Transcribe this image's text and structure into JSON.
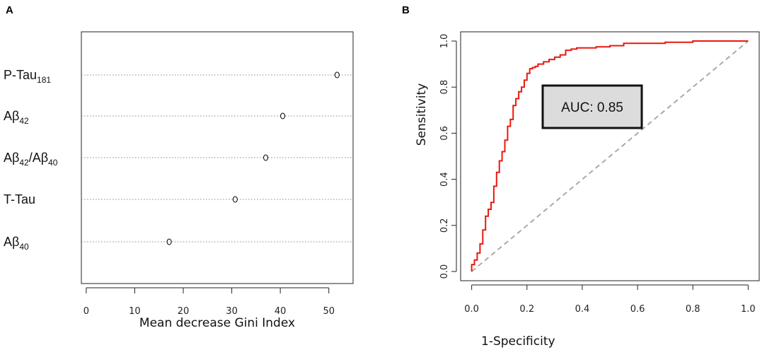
{
  "figure": {
    "panel_a": "A",
    "panel_b": "B"
  },
  "chart_data": [
    {
      "type": "scatter",
      "title": "",
      "xlabel": "Mean decrease Gini Index",
      "ylabel": "",
      "xlim": [
        -1,
        55
      ],
      "xticks": [
        "0",
        "10",
        "20",
        "30",
        "40",
        "50"
      ],
      "grid": "horizontal dotted",
      "points": [
        {
          "label": "P-Tau",
          "sub": "181",
          "label2": "",
          "sub2": "",
          "value": 51.7
        },
        {
          "label": "Aβ",
          "sub": "42",
          "label2": "",
          "sub2": "",
          "value": 40.5
        },
        {
          "label": "Aβ",
          "sub": "42",
          "label2": "/Aβ",
          "sub2": "40",
          "value": 37.0
        },
        {
          "label": "T-Tau",
          "sub": "",
          "label2": "",
          "sub2": "",
          "value": 30.7
        },
        {
          "label": "Aβ",
          "sub": "40",
          "label2": "",
          "sub2": "",
          "value": 17.1
        }
      ]
    },
    {
      "type": "line",
      "title": "",
      "xlabel": "1-Specificity",
      "ylabel": "Sensitivity",
      "xlim": [
        -0.04,
        1.04
      ],
      "ylim": [
        -0.04,
        1.04
      ],
      "xticks": [
        "0.0",
        "0.2",
        "0.4",
        "0.6",
        "0.8",
        "1.0"
      ],
      "yticks": [
        "0.0",
        "0.2",
        "0.4",
        "0.6",
        "0.8",
        "1.0"
      ],
      "annotation": "AUC: 0.85",
      "series": [
        {
          "name": "ROC",
          "color": "#e8190f",
          "x": [
            0.0,
            0.01,
            0.02,
            0.03,
            0.04,
            0.05,
            0.06,
            0.07,
            0.08,
            0.09,
            0.1,
            0.11,
            0.12,
            0.13,
            0.14,
            0.15,
            0.16,
            0.17,
            0.18,
            0.19,
            0.2,
            0.21,
            0.22,
            0.23,
            0.24,
            0.26,
            0.28,
            0.3,
            0.32,
            0.34,
            0.36,
            0.38,
            0.4,
            0.45,
            0.5,
            0.55,
            0.58,
            0.6,
            0.7,
            0.8,
            0.9,
            1.0
          ],
          "y": [
            0.0,
            0.03,
            0.05,
            0.08,
            0.12,
            0.18,
            0.24,
            0.27,
            0.3,
            0.37,
            0.43,
            0.48,
            0.52,
            0.57,
            0.63,
            0.66,
            0.72,
            0.75,
            0.78,
            0.8,
            0.83,
            0.86,
            0.88,
            0.885,
            0.89,
            0.9,
            0.91,
            0.92,
            0.93,
            0.94,
            0.96,
            0.965,
            0.97,
            0.97,
            0.975,
            0.98,
            0.99,
            0.99,
            0.99,
            0.995,
            1.0,
            1.0
          ]
        },
        {
          "name": "reference",
          "color": "#aaaaaa",
          "x": [
            0.0,
            1.0
          ],
          "y": [
            0.0,
            1.0
          ]
        }
      ]
    }
  ]
}
